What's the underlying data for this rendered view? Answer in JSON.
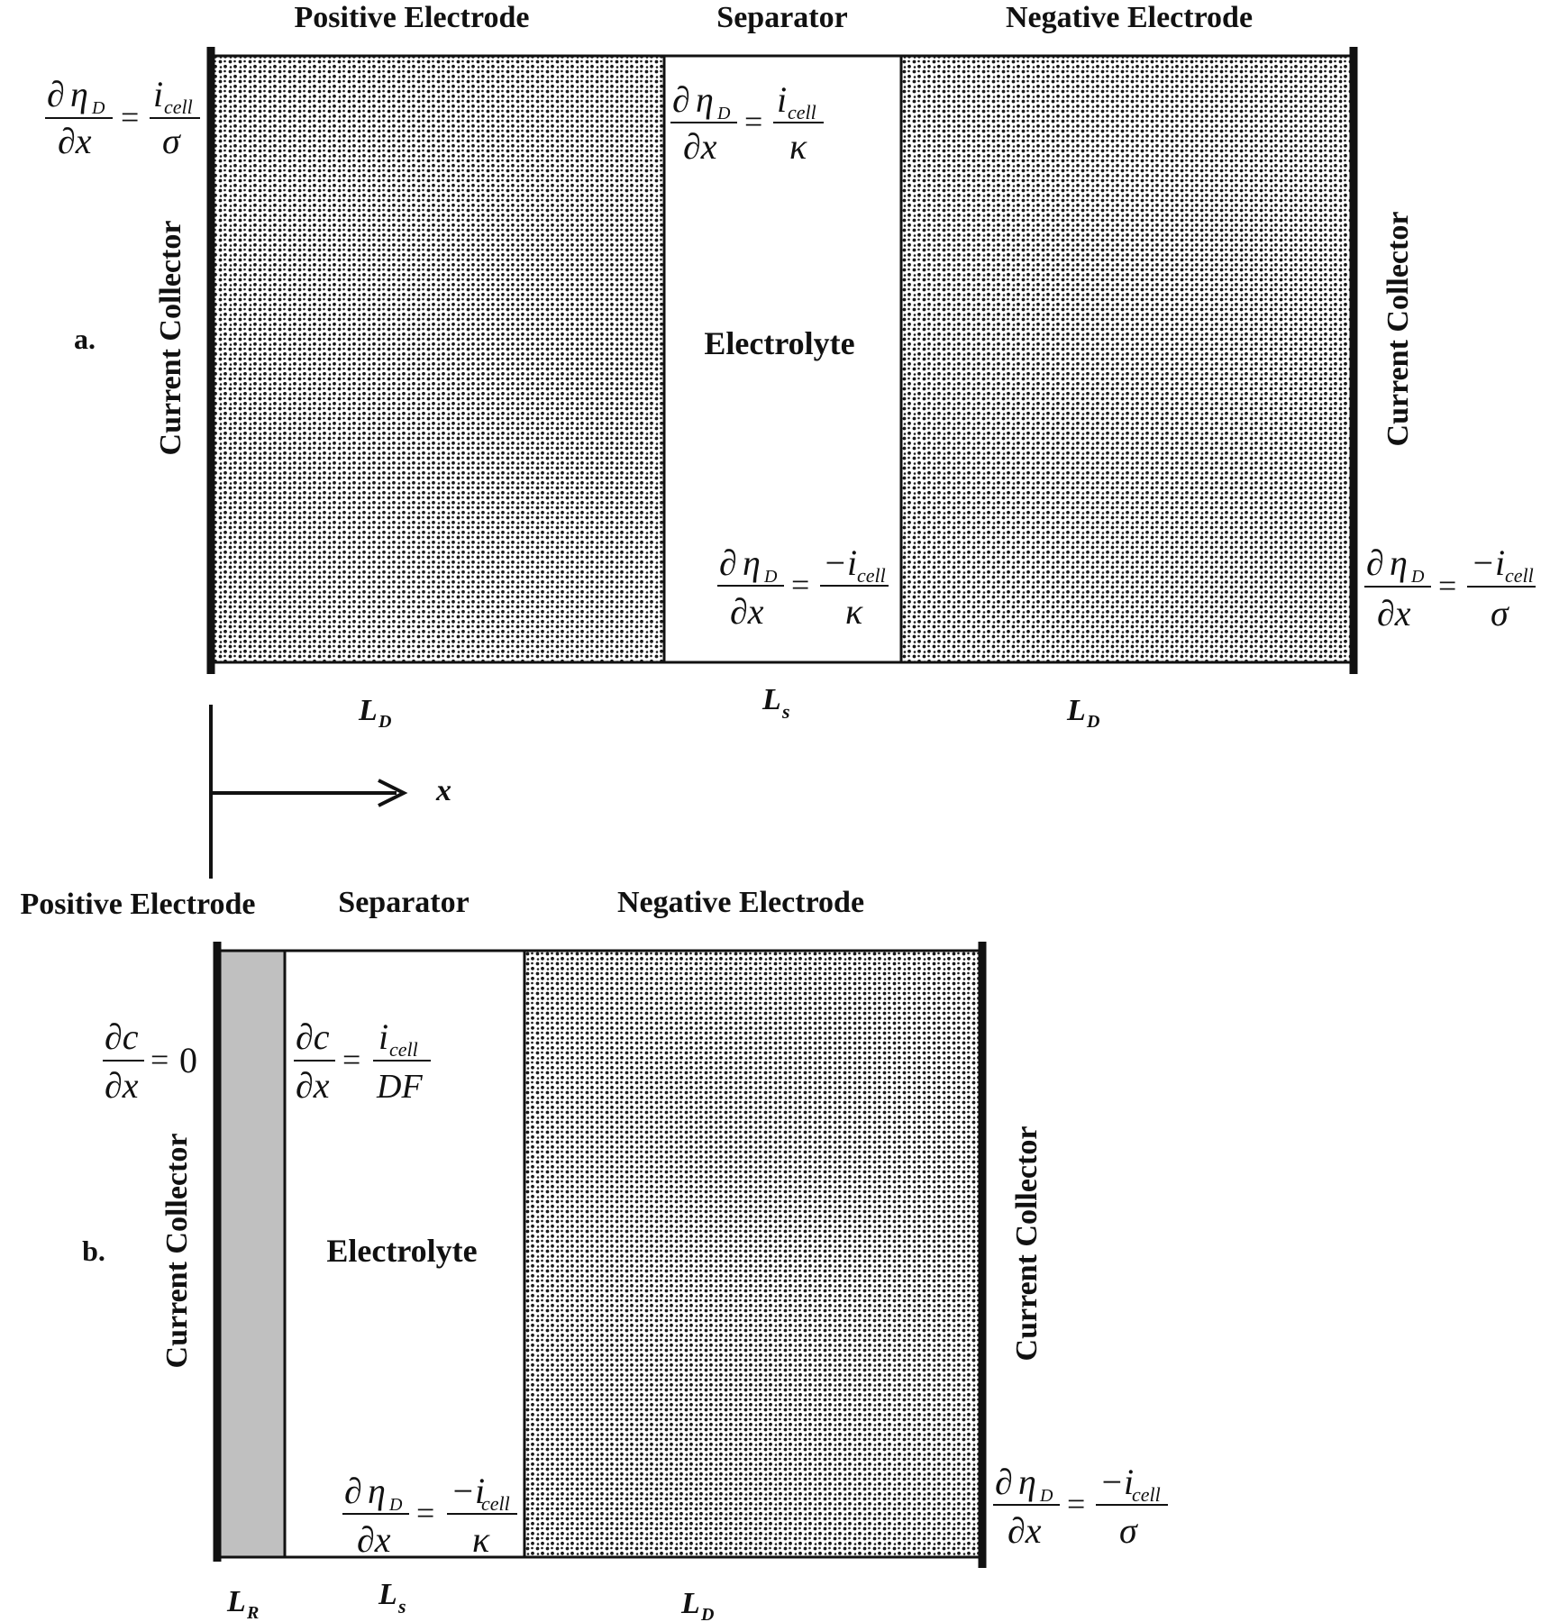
{
  "panel_a": {
    "tag": "a.",
    "regions": {
      "positive": "Positive Electrode",
      "separator": "Separator",
      "negative": "Negative Electrode"
    },
    "collector_left": "Current Collector",
    "collector_right": "Current Collector",
    "electrolyte": "Electrolyte",
    "lengths": {
      "left": "L",
      "left_sub": "D",
      "mid": "L",
      "mid_sub": "s",
      "right": "L",
      "right_sub": "D"
    },
    "eq_left": {
      "d": "∂",
      "var": "η",
      "var_sub": "D",
      "den": "∂x",
      "eq": "=",
      "num": "i",
      "num_sub": "cell",
      "rden": "σ"
    },
    "eq_sep_top": {
      "d": "∂",
      "var": "η",
      "var_sub": "D",
      "den": "∂x",
      "eq": "=",
      "num": "i",
      "num_sub": "cell",
      "rden": "κ"
    },
    "eq_sep_bottom": {
      "d": "∂",
      "var": "η",
      "var_sub": "D",
      "den": "∂x",
      "eq": "=",
      "num": "−i",
      "num_sub": "cell",
      "rden": "κ"
    },
    "eq_right": {
      "d": "∂",
      "var": "η",
      "var_sub": "D",
      "den": "∂x",
      "eq": "=",
      "num": "−i",
      "num_sub": "cell",
      "rden": "σ"
    }
  },
  "axis": {
    "label": "x"
  },
  "panel_b": {
    "tag": "b.",
    "regions": {
      "positive": "Positive Electrode",
      "separator": "Separator",
      "negative": "Negative Electrode"
    },
    "collector_left": "Current Collector",
    "collector_right": "Current Collector",
    "electrolyte": "Electrolyte",
    "lengths": {
      "left": "L",
      "left_sub": "R",
      "mid": "L",
      "mid_sub": "s",
      "right": "L",
      "right_sub": "D"
    },
    "eq_left": {
      "num": "∂c",
      "den": "∂x",
      "eq": "=",
      "rhs": "0"
    },
    "eq_sep_top": {
      "num": "∂c",
      "den": "∂x",
      "eq": "=",
      "rnum": "i",
      "rnum_sub": "cell",
      "rden": "DF"
    },
    "eq_sep_bottom": {
      "d": "∂",
      "var": "η",
      "var_sub": "D",
      "den": "∂x",
      "eq": "=",
      "num": "−i",
      "num_sub": "cell",
      "rden": "κ"
    },
    "eq_right": {
      "d": "∂",
      "var": "η",
      "var_sub": "D",
      "den": "∂x",
      "eq": "=",
      "num": "−i",
      "num_sub": "cell",
      "rden": "σ"
    }
  },
  "colors": {
    "line": "#111111",
    "positive_b_fill": "#c0c0c0",
    "dot": "#1a1a1a"
  }
}
